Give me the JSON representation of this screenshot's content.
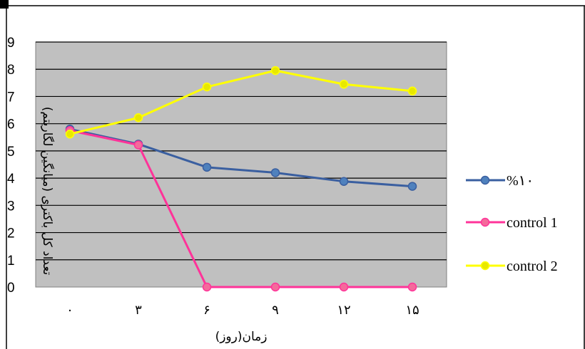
{
  "chart_data": {
    "type": "line",
    "categories": [
      "۰",
      "۳",
      "۶",
      "۹",
      "۱۲",
      "۱۵"
    ],
    "xlabel": "زمان(روز)",
    "ylabel": "تعداد کل باکتری (میانگین لگاریتم)",
    "ylim": [
      0,
      9
    ],
    "yticks": [
      "0",
      "1",
      "2",
      "3",
      "4",
      "5",
      "6",
      "7",
      "8",
      "9"
    ],
    "grid": true,
    "plot_background": "#c0c0c0",
    "legend_position": "right",
    "series": [
      {
        "name": "%۱۰",
        "values": [
          5.8,
          5.25,
          4.4,
          4.2,
          3.88,
          3.7
        ],
        "color": "#3a5fa0",
        "marker_fill": "#4f81bd"
      },
      {
        "name": "control 1",
        "values": [
          5.75,
          5.22,
          0,
          0,
          0,
          0
        ],
        "color": "#ff3399",
        "marker_fill": "#f46a9b"
      },
      {
        "name": "control 2",
        "values": [
          5.62,
          6.22,
          7.35,
          7.95,
          7.45,
          7.2
        ],
        "color": "#ffff00",
        "marker_fill": "#e8e800"
      }
    ]
  }
}
